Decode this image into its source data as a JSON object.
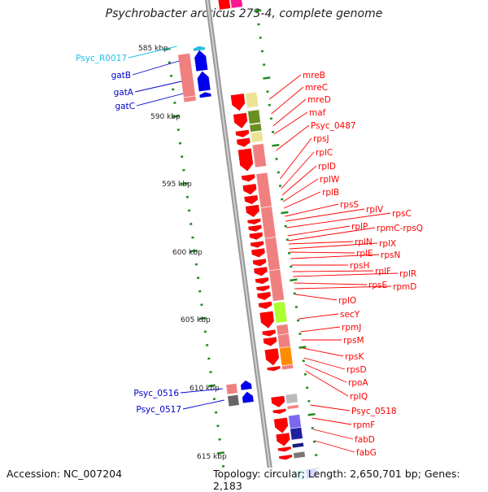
{
  "title": "Psychrobacter arcticus 273-4, complete genome",
  "footer": {
    "accession": "Accession: NC_007204",
    "summary": "Topology: circular; Length: 2,650,701 bp; Genes: 2,183"
  },
  "kbp_ticks": [
    "585 kbp",
    "590 kbp",
    "595 kbp",
    "600 kbp",
    "605 kbp",
    "610 kbp",
    "615 kbp"
  ],
  "colors": {
    "backbone": "#999999",
    "tick": "#228b22",
    "right_label": "#ff0000",
    "left_label": "#0000cc",
    "rna_label": "#22c0e8"
  },
  "left_labels": [
    "Psyc_R0017",
    "gatB",
    "gatA",
    "gatC",
    "Psyc_0516",
    "Psyc_0517"
  ],
  "right_labels": [
    "mreB",
    "mreC",
    "mreD",
    "maf",
    "Psyc_0487",
    "rpsJ",
    "rplC",
    "rplD",
    "rplW",
    "rplB",
    "rpsS",
    "rplV",
    "rpsC",
    "rplP",
    "rpmC-rpsQ",
    "rplN",
    "rplX",
    "rplE",
    "rpsN",
    "rpsH",
    "rplF",
    "rplR",
    "rpsE",
    "rpmD",
    "rplO",
    "secY",
    "rpmJ",
    "rpsM",
    "rpsK",
    "rpsD",
    "rpoA",
    "rplQ",
    "Psyc_0518",
    "rpmF",
    "fabD",
    "fabG"
  ]
}
